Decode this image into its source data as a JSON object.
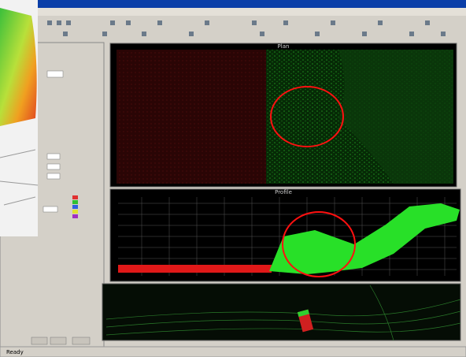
{
  "panels": {
    "plan": {
      "title": "Plan"
    },
    "profile": {
      "title": "Profile"
    }
  },
  "status": {
    "text": "Ready"
  }
}
